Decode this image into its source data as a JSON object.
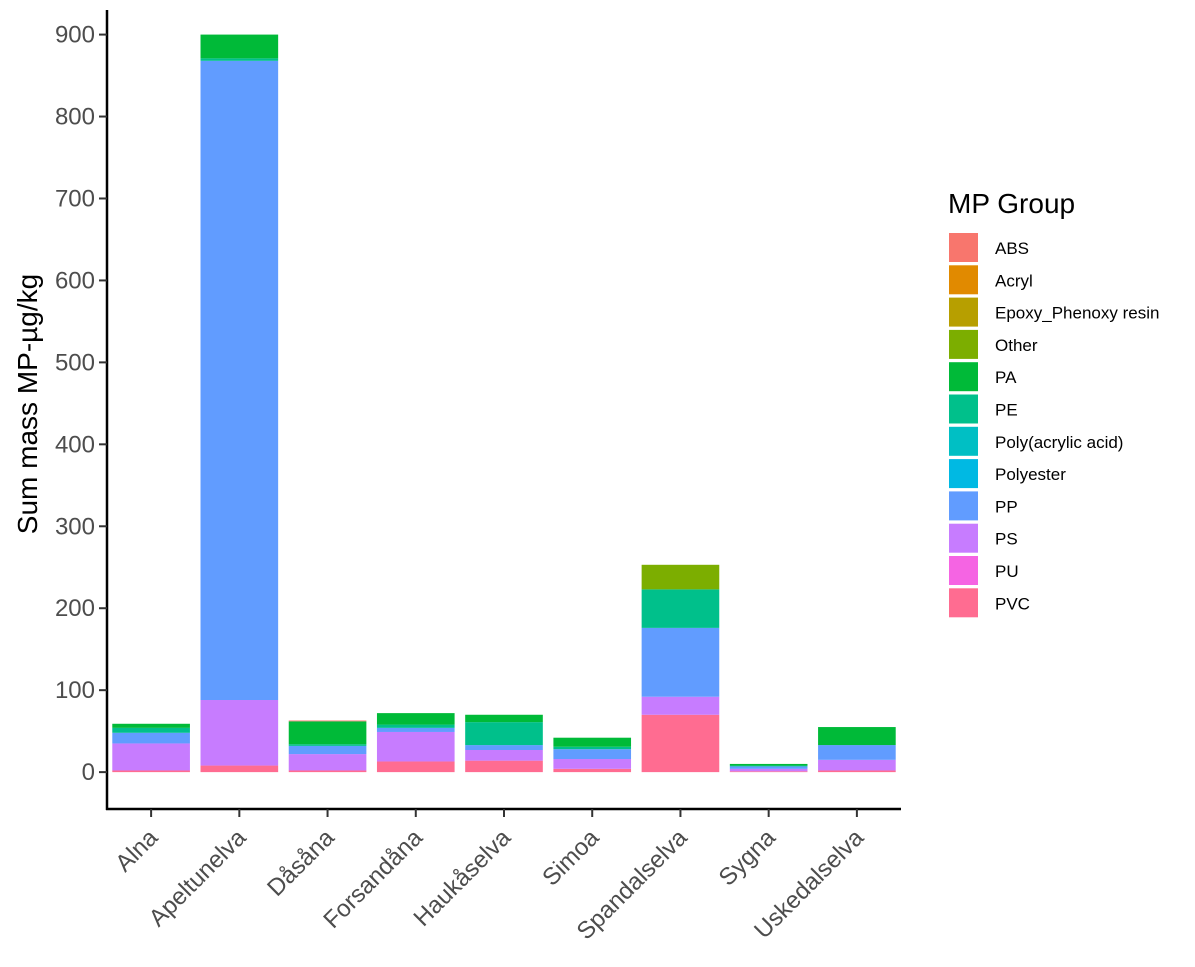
{
  "chart_data": {
    "type": "bar",
    "stacked": true,
    "ylabel": "Sum mass MP-µg/kg",
    "xlabel": "",
    "ylim": [
      -45,
      930
    ],
    "yticks": [
      0,
      100,
      200,
      300,
      400,
      500,
      600,
      700,
      800,
      900
    ],
    "categories": [
      "Alna",
      "Apeltunelva",
      "Dåsåna",
      "Forsandåna",
      "Haukåselva",
      "Simoa",
      "Spandalselva",
      "Sygna",
      "Uskedalselva"
    ],
    "legend": {
      "title": "MP Group",
      "position": "right"
    },
    "series": [
      {
        "name": "PVC",
        "color": "#FF6C91",
        "values": [
          2,
          8,
          2,
          13,
          14,
          4,
          70,
          1,
          2
        ]
      },
      {
        "name": "PU",
        "color": "#F564E3",
        "values": [
          0,
          0,
          0,
          0,
          0,
          0,
          0,
          0,
          0
        ]
      },
      {
        "name": "PS",
        "color": "#C77CFF",
        "values": [
          33,
          80,
          20,
          36,
          13,
          12,
          22,
          3,
          13
        ]
      },
      {
        "name": "PP",
        "color": "#619CFF",
        "values": [
          13,
          780,
          10,
          5,
          6,
          12,
          84,
          3,
          18
        ]
      },
      {
        "name": "Polyester",
        "color": "#00B9E3",
        "values": [
          0,
          0,
          0,
          0,
          0,
          0,
          0,
          0,
          0
        ]
      },
      {
        "name": "Poly(acrylic acid)",
        "color": "#00BFC4",
        "values": [
          0,
          0,
          0,
          0,
          0,
          0,
          0,
          0,
          0
        ]
      },
      {
        "name": "PE",
        "color": "#00C08B",
        "values": [
          6,
          3,
          2,
          4,
          28,
          3,
          47,
          1,
          0
        ]
      },
      {
        "name": "PA",
        "color": "#00BA38",
        "values": [
          5,
          29,
          28,
          14,
          9,
          11,
          0,
          2,
          22
        ]
      },
      {
        "name": "Other",
        "color": "#7CAE00",
        "values": [
          0,
          0,
          0,
          0,
          0,
          0,
          30,
          0,
          0
        ]
      },
      {
        "name": "Epoxy_Phenoxy resin",
        "color": "#B79F00",
        "values": [
          0,
          0,
          0,
          0,
          0,
          0,
          0,
          0,
          0
        ]
      },
      {
        "name": "Acryl",
        "color": "#E18A00",
        "values": [
          0,
          0,
          0,
          0,
          0,
          0,
          0,
          0,
          0
        ]
      },
      {
        "name": "ABS",
        "color": "#F8766D",
        "values": [
          0,
          0,
          1,
          0,
          0,
          0,
          0,
          0,
          0
        ]
      }
    ],
    "legend_order": [
      "ABS",
      "Acryl",
      "Epoxy_Phenoxy resin",
      "Other",
      "PA",
      "PE",
      "Poly(acrylic acid)",
      "Polyester",
      "PP",
      "PS",
      "PU",
      "PVC"
    ]
  }
}
